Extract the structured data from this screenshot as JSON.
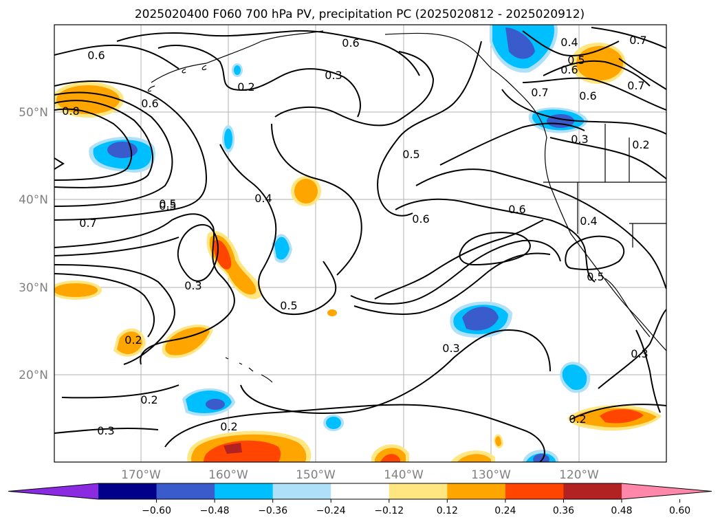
{
  "title": "2025020400 F060 700 hPa PV, precipitation PC (2025020812 - 2025020912)",
  "lat_labels": [
    "50°N",
    "40°N",
    "30°N",
    "20°N"
  ],
  "lon_labels": [
    "170°W",
    "160°W",
    "150°W",
    "140°W",
    "130°W",
    "120°W"
  ],
  "colorbar": {
    "ticks": [
      "−0.60",
      "−0.48",
      "−0.36",
      "−0.24",
      "−0.12",
      "0.12",
      "0.24",
      "0.36",
      "0.48",
      "0.60"
    ],
    "colors": [
      "#8a2be2",
      "#00008b",
      "#3a5bcc",
      "#00bfff",
      "#aee0fa",
      "#ffffff",
      "#ffe680",
      "#ffa500",
      "#ff4500",
      "#b22222",
      "#ff88aa"
    ]
  },
  "contour_labels": [
    "0.6",
    "0.6",
    "0.3",
    "0.2",
    "0.4",
    "0.5",
    "0.6",
    "0.7",
    "0.8",
    "0.6",
    "0.7",
    "0.5",
    "0.7",
    "0.6",
    "0.5",
    "0.3",
    "0.2",
    "0.5",
    "0.4",
    "0.6",
    "0.7",
    "0.6",
    "0.4",
    "0.5",
    "0.3",
    "0.2",
    "0.3",
    "0.2",
    "0.2",
    "0.3",
    "0.3",
    "0.2",
    "0.5"
  ]
}
